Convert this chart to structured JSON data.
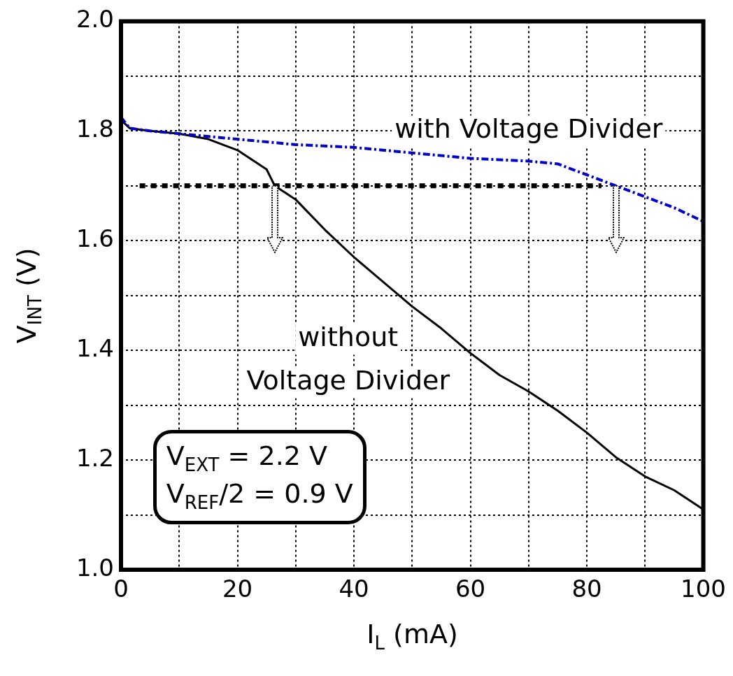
{
  "chart_data": {
    "type": "line",
    "xlabel": "I$_{L}$ (mA)",
    "ylabel": "V$_{INT}$ (V)",
    "series": [
      {
        "name": "with Voltage Divider",
        "color": "#0000cc",
        "line_style": "dashed",
        "x": [
          0,
          1.5,
          5,
          10,
          20,
          30,
          40,
          50,
          60,
          70,
          75,
          80,
          85,
          90,
          95,
          100
        ],
        "values": [
          1.825,
          1.805,
          1.8,
          1.795,
          1.785,
          1.775,
          1.77,
          1.76,
          1.75,
          1.745,
          1.74,
          1.72,
          1.7,
          1.68,
          1.66,
          1.635
        ]
      },
      {
        "name": "without Voltage Divider",
        "color": "#000000",
        "line_style": "solid",
        "x": [
          0,
          1.5,
          5,
          10,
          15,
          20,
          25,
          26.4,
          30,
          35,
          40,
          45,
          50,
          55,
          60,
          65,
          70,
          75,
          80,
          85,
          90,
          95,
          100
        ],
        "values": [
          1.82,
          1.805,
          1.8,
          1.795,
          1.785,
          1.765,
          1.73,
          1.7,
          1.675,
          1.62,
          1.57,
          1.525,
          1.48,
          1.44,
          1.395,
          1.355,
          1.325,
          1.29,
          1.25,
          1.205,
          1.17,
          1.145,
          1.11
        ]
      },
      {
        "color": "#000000",
        "line_style": "dotted",
        "x": [
          3.2,
          82.5
        ],
        "values": [
          1.7,
          1.7
        ]
      }
    ],
    "xlim": [
      0,
      100
    ],
    "xticks": [
      0,
      {
        "value": 10,
        "label": null
      },
      20,
      {
        "value": 30,
        "label": null
      },
      40,
      {
        "value": 50,
        "label": null
      },
      60,
      {
        "value": 70,
        "label": null
      },
      80,
      {
        "value": 90,
        "label": null
      },
      100
    ],
    "ylim": [
      1.0,
      2.0
    ],
    "yticks": [
      {
        "value": 1.0,
        "label": "1.0"
      },
      {
        "value": 1.1,
        "label": null
      },
      1.2,
      {
        "value": 1.3,
        "label": null
      },
      1.4,
      {
        "value": 1.5,
        "label": null
      },
      1.6,
      {
        "value": 1.7,
        "label": null
      },
      1.8,
      {
        "value": 1.9,
        "label": null
      },
      {
        "value": 2.0,
        "label": "2.0"
      }
    ],
    "grid": true,
    "annotations": [
      "V$_{EXT}$ = 2.2 V",
      "V$_{REF}$/2 = 0.9 V"
    ]
  }
}
